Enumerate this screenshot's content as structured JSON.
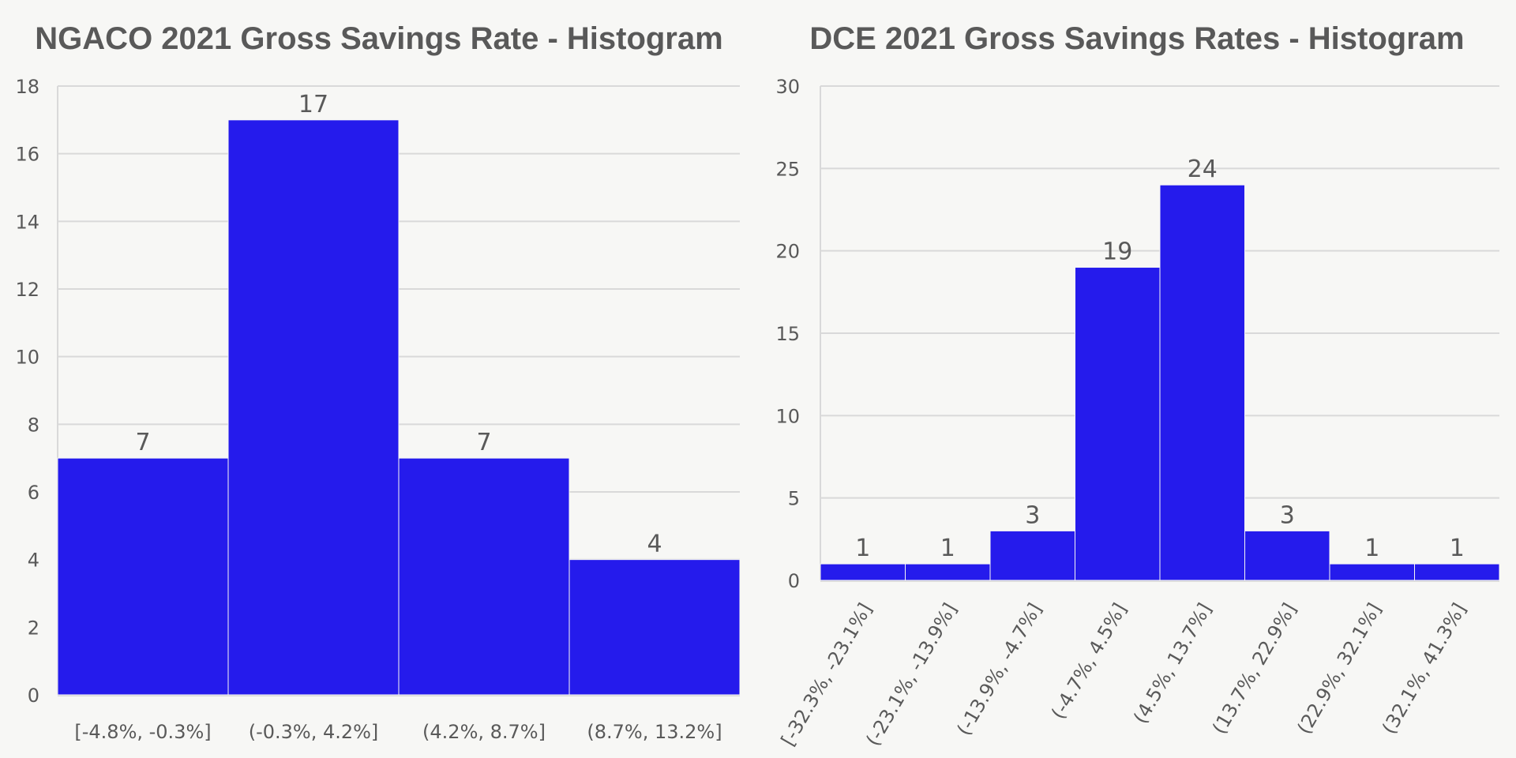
{
  "chart_data": [
    {
      "type": "bar",
      "title": "NGACO 2021 Gross Savings Rate - Histogram",
      "xlabel": "",
      "ylabel": "",
      "categories": [
        "[-4.8%, -0.3%]",
        "(-0.3%, 4.2%]",
        "(4.2%, 8.7%]",
        "(8.7%, 13.2%]"
      ],
      "values": [
        7,
        17,
        7,
        4
      ],
      "ylim": [
        0,
        18
      ],
      "yticks": [
        0,
        2,
        4,
        6,
        8,
        10,
        12,
        14,
        16,
        18
      ],
      "grid": true,
      "legend": "none",
      "data_labels": true,
      "bar_color": "#251bec",
      "xtick_rotation_deg": 0
    },
    {
      "type": "bar",
      "title": "DCE 2021 Gross Savings Rates - Histogram",
      "xlabel": "",
      "ylabel": "",
      "categories": [
        "[-32.3%, -23.1%]",
        "(-23.1%, -13.9%]",
        "(-13.9%, -4.7%]",
        "(-4.7%, 4.5%]",
        "(4.5%, 13.7%]",
        "(13.7%, 22.9%]",
        "(22.9%, 32.1%]",
        "(32.1%, 41.3%]"
      ],
      "values": [
        1,
        1,
        3,
        19,
        24,
        3,
        1,
        1
      ],
      "ylim": [
        0,
        30
      ],
      "yticks": [
        0,
        5,
        10,
        15,
        20,
        25,
        30
      ],
      "grid": true,
      "legend": "none",
      "data_labels": true,
      "bar_color": "#251bec",
      "xtick_rotation_deg": -60
    }
  ]
}
